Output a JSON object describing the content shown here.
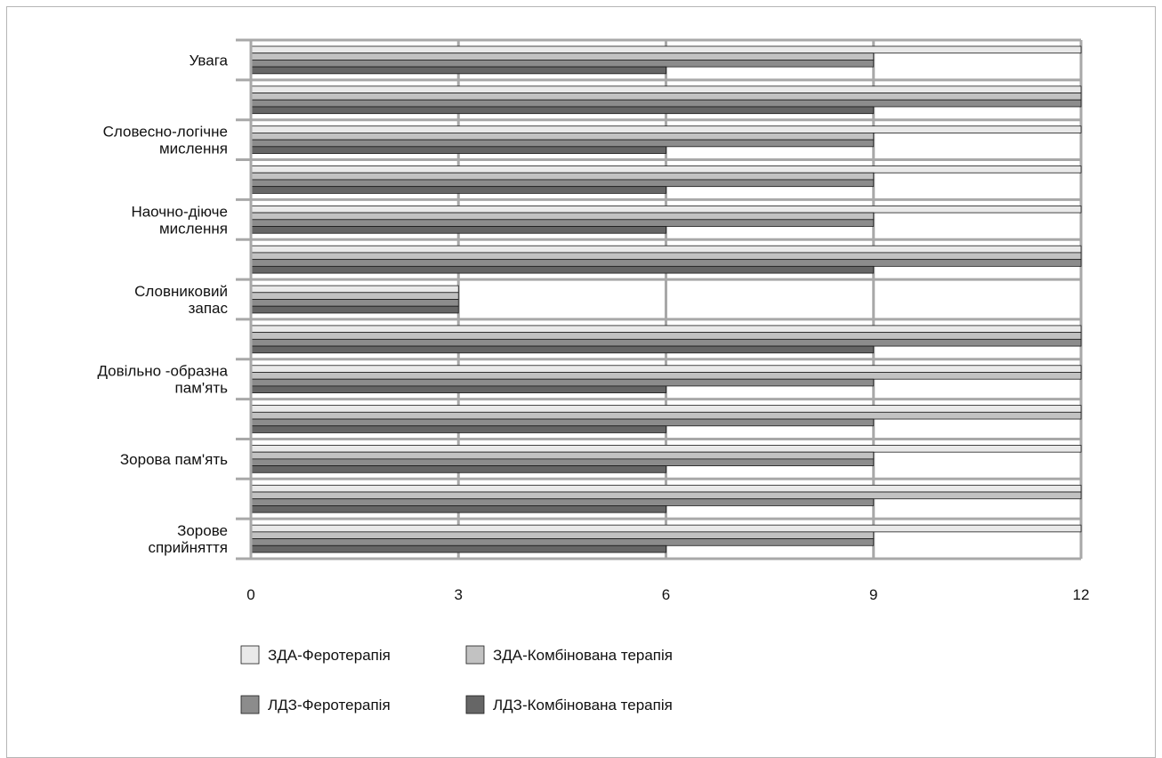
{
  "chart_data": {
    "type": "bar",
    "orientation": "horizontal",
    "title": "",
    "xlabel": "",
    "ylabel": "",
    "xlim": [
      0,
      12
    ],
    "x_ticks": [
      "0",
      "3",
      "6",
      "9",
      "12"
    ],
    "grid": true,
    "legend_position": "bottom",
    "category_labels_top_to_bottom": [
      [
        "Увага"
      ],
      [],
      [
        "Словесно-логічне",
        "мислення"
      ],
      [],
      [
        "Наочно-діюче",
        "мислення"
      ],
      [],
      [
        "Словниковий",
        "запас"
      ],
      [],
      [
        "Довільно -образна",
        "пам'ять"
      ],
      [],
      [
        "Зорова пам'ять"
      ],
      [],
      [
        "Зорове",
        "сприйняття"
      ]
    ],
    "series": [
      {
        "name": "ЗДА-Феротерапія",
        "color": "#e9e9e9",
        "values": [
          12,
          12,
          12,
          12,
          12,
          12,
          3,
          12,
          12,
          12,
          12,
          12,
          12
        ]
      },
      {
        "name": "ЗДА-Комбінована терапія",
        "color": "#c2c2c2",
        "values": [
          9,
          12,
          9,
          9,
          9,
          12,
          3,
          12,
          12,
          12,
          9,
          12,
          9
        ]
      },
      {
        "name": "ЛДЗ-Феротерапія",
        "color": "#8c8c8c",
        "values": [
          9,
          12,
          9,
          9,
          9,
          12,
          3,
          12,
          9,
          9,
          9,
          9,
          9
        ]
      },
      {
        "name": "ЛДЗ-Комбінована терапія",
        "color": "#666666",
        "values": [
          6,
          9,
          6,
          6,
          6,
          9,
          3,
          9,
          6,
          6,
          6,
          6,
          6
        ]
      }
    ]
  }
}
